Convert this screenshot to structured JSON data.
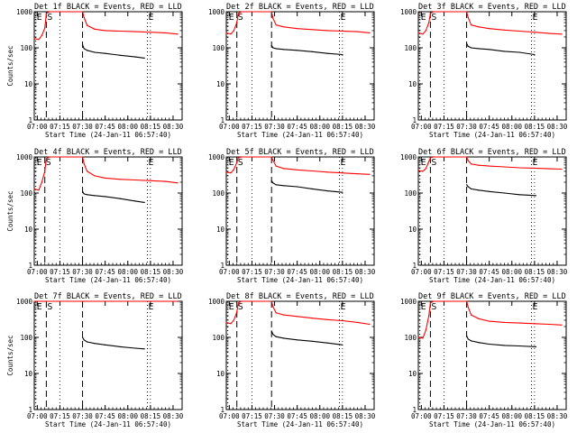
{
  "chart_data": [
    {
      "type": "line",
      "title": "Det 1f BLACK = Events, RED = LLD",
      "xlabel": "Start Time (24-Jan-11 06:57:40)",
      "ylabel": "Counts/sec",
      "x_ticks": [
        "07:00",
        "07:15",
        "07:30",
        "07:45",
        "08:00",
        "08:15",
        "08:30"
      ],
      "y_ticks": [
        "1",
        "10",
        "100",
        "1000"
      ],
      "ylim": [
        1,
        1000
      ],
      "scale": "log",
      "markers": [
        {
          "label": "E",
          "time": "06:59"
        },
        {
          "label": "S",
          "time": "07:06"
        },
        {
          "label": "",
          "time": "07:30"
        },
        {
          "label": "E",
          "time": "08:13"
        }
      ],
      "series": [
        {
          "name": "RED",
          "color": "#ff0000",
          "x": [
            "06:58",
            "07:01",
            "07:03",
            "07:05",
            "07:06",
            "07:08",
            "07:30",
            "07:31",
            "07:33",
            "07:38",
            "07:45",
            "07:55",
            "08:05",
            "08:15",
            "08:25",
            "08:33"
          ],
          "y": [
            180,
            170,
            220,
            350,
            900,
            1000,
            1000,
            700,
            420,
            330,
            300,
            290,
            280,
            270,
            260,
            240
          ]
        },
        {
          "name": "BLACK",
          "color": "#000000",
          "x": [
            "07:30",
            "07:31",
            "07:33",
            "07:38",
            "07:45",
            "07:55",
            "08:05",
            "08:11"
          ],
          "y": [
            120,
            95,
            85,
            75,
            70,
            62,
            56,
            52
          ]
        }
      ]
    },
    {
      "type": "line",
      "title": "Det 2f BLACK = Events, RED = LLD",
      "xlabel": "Start Time (24-Jan-11 06:57:40)",
      "ylabel": "",
      "x_ticks": [
        "07:00",
        "07:15",
        "07:30",
        "07:45",
        "08:00",
        "08:15",
        "08:30"
      ],
      "y_ticks": [
        "1",
        "10",
        "100",
        "1000"
      ],
      "ylim": [
        1,
        1000
      ],
      "scale": "log",
      "markers": [
        {
          "label": "E",
          "time": "06:59"
        },
        {
          "label": "S",
          "time": "07:05"
        },
        {
          "label": "",
          "time": "07:28"
        },
        {
          "label": "E",
          "time": "08:13"
        }
      ],
      "series": [
        {
          "name": "RED",
          "color": "#ff0000",
          "x": [
            "06:58",
            "07:01",
            "07:03",
            "07:05",
            "07:06",
            "07:08",
            "07:28",
            "07:29",
            "07:31",
            "07:36",
            "07:45",
            "07:55",
            "08:05",
            "08:15",
            "08:25",
            "08:33"
          ],
          "y": [
            260,
            240,
            300,
            500,
            900,
            1000,
            1000,
            650,
            430,
            380,
            340,
            320,
            300,
            290,
            280,
            260
          ]
        },
        {
          "name": "BLACK",
          "color": "#000000",
          "x": [
            "07:28",
            "07:29",
            "07:31",
            "07:36",
            "07:45",
            "07:55",
            "08:05",
            "08:15"
          ],
          "y": [
            115,
            100,
            95,
            90,
            85,
            78,
            70,
            65
          ]
        }
      ]
    },
    {
      "type": "line",
      "title": "Det 3f BLACK = Events, RED = LLD",
      "xlabel": "Start Time (24-Jan-11 06:57:40)",
      "ylabel": "",
      "x_ticks": [
        "07:00",
        "07:15",
        "07:30",
        "07:45",
        "08:00",
        "08:15",
        "08:30"
      ],
      "y_ticks": [
        "1",
        "10",
        "100",
        "1000"
      ],
      "ylim": [
        1,
        1000
      ],
      "scale": "log",
      "markers": [
        {
          "label": "E",
          "time": "06:59"
        },
        {
          "label": "S",
          "time": "07:06"
        },
        {
          "label": "",
          "time": "07:30"
        },
        {
          "label": "E",
          "time": "08:13"
        }
      ],
      "series": [
        {
          "name": "RED",
          "color": "#ff0000",
          "x": [
            "06:58",
            "07:01",
            "07:03",
            "07:05",
            "07:06",
            "07:08",
            "07:30",
            "07:31",
            "07:33",
            "07:38",
            "07:45",
            "07:55",
            "08:05",
            "08:15",
            "08:25",
            "08:33"
          ],
          "y": [
            260,
            240,
            300,
            500,
            900,
            1000,
            1000,
            700,
            430,
            380,
            340,
            310,
            290,
            270,
            250,
            240
          ]
        },
        {
          "name": "BLACK",
          "color": "#000000",
          "x": [
            "07:30",
            "07:31",
            "07:33",
            "07:38",
            "07:45",
            "07:55",
            "08:05",
            "08:15"
          ],
          "y": [
            130,
            110,
            100,
            95,
            90,
            80,
            75,
            65
          ]
        }
      ]
    },
    {
      "type": "line",
      "title": "Det 4f BLACK = Events, RED = LLD",
      "xlabel": "Start Time (24-Jan-11 06:57:40)",
      "ylabel": "Counts/sec",
      "x_ticks": [
        "07:00",
        "07:15",
        "07:30",
        "07:45",
        "08:00",
        "08:15",
        "08:30"
      ],
      "y_ticks": [
        "1",
        "10",
        "100",
        "1000"
      ],
      "ylim": [
        1,
        1000
      ],
      "scale": "log",
      "markers": [
        {
          "label": "E",
          "time": "06:59"
        },
        {
          "label": "S",
          "time": "07:05"
        },
        {
          "label": "",
          "time": "07:30"
        },
        {
          "label": "E",
          "time": "08:13"
        }
      ],
      "series": [
        {
          "name": "RED",
          "color": "#ff0000",
          "x": [
            "06:58",
            "07:01",
            "07:03",
            "07:05",
            "07:06",
            "07:08",
            "07:30",
            "07:31",
            "07:33",
            "07:38",
            "07:45",
            "07:55",
            "08:05",
            "08:15",
            "08:25",
            "08:33"
          ],
          "y": [
            130,
            120,
            200,
            400,
            900,
            1000,
            1000,
            650,
            400,
            300,
            260,
            240,
            230,
            220,
            210,
            190
          ]
        },
        {
          "name": "BLACK",
          "color": "#000000",
          "x": [
            "07:30",
            "07:31",
            "07:33",
            "07:38",
            "07:45",
            "07:55",
            "08:05",
            "08:11"
          ],
          "y": [
            110,
            95,
            90,
            85,
            80,
            70,
            60,
            55
          ]
        }
      ]
    },
    {
      "type": "line",
      "title": "Det 5f BLACK = Events, RED = LLD",
      "xlabel": "Start Time (24-Jan-11 06:57:40)",
      "ylabel": "",
      "x_ticks": [
        "07:00",
        "07:15",
        "07:30",
        "07:45",
        "08:00",
        "08:15",
        "08:30"
      ],
      "y_ticks": [
        "1",
        "10",
        "100",
        "1000"
      ],
      "ylim": [
        1,
        1000
      ],
      "scale": "log",
      "markers": [
        {
          "label": "E",
          "time": "06:59"
        },
        {
          "label": "S",
          "time": "07:05"
        },
        {
          "label": "",
          "time": "07:28"
        },
        {
          "label": "E",
          "time": "08:13"
        }
      ],
      "series": [
        {
          "name": "RED",
          "color": "#ff0000",
          "x": [
            "06:58",
            "07:01",
            "07:03",
            "07:05",
            "07:06",
            "07:08",
            "07:28",
            "07:29",
            "07:31",
            "07:36",
            "07:45",
            "07:55",
            "08:05",
            "08:15",
            "08:25",
            "08:33"
          ],
          "y": [
            380,
            360,
            450,
            700,
            950,
            1000,
            1000,
            800,
            560,
            480,
            440,
            410,
            380,
            360,
            340,
            330
          ]
        },
        {
          "name": "BLACK",
          "color": "#000000",
          "x": [
            "07:28",
            "07:29",
            "07:31",
            "07:36",
            "07:45",
            "07:55",
            "08:05",
            "08:15"
          ],
          "y": [
            220,
            190,
            170,
            160,
            150,
            130,
            115,
            105
          ]
        }
      ]
    },
    {
      "type": "line",
      "title": "Det 6f BLACK = Events, RED = LLD",
      "xlabel": "Start Time (24-Jan-11 06:57:40)",
      "ylabel": "",
      "x_ticks": [
        "07:00",
        "07:15",
        "07:30",
        "07:45",
        "08:00",
        "08:15",
        "08:30"
      ],
      "y_ticks": [
        "1",
        "10",
        "100",
        "1000"
      ],
      "ylim": [
        1,
        1000
      ],
      "scale": "log",
      "markers": [
        {
          "label": "E",
          "time": "06:59"
        },
        {
          "label": "S",
          "time": "07:06"
        },
        {
          "label": "",
          "time": "07:30"
        },
        {
          "label": "E",
          "time": "08:13"
        }
      ],
      "series": [
        {
          "name": "RED",
          "color": "#ff0000",
          "x": [
            "06:58",
            "07:01",
            "07:03",
            "07:05",
            "07:06",
            "07:08",
            "07:30",
            "07:31",
            "07:33",
            "07:38",
            "07:45",
            "07:55",
            "08:05",
            "08:15",
            "08:25",
            "08:33"
          ],
          "y": [
            420,
            400,
            480,
            750,
            950,
            1000,
            1000,
            800,
            640,
            590,
            560,
            530,
            500,
            490,
            470,
            460
          ]
        },
        {
          "name": "BLACK",
          "color": "#000000",
          "x": [
            "07:30",
            "07:31",
            "07:33",
            "07:38",
            "07:45",
            "07:55",
            "08:05",
            "08:16"
          ],
          "y": [
            170,
            150,
            130,
            120,
            110,
            100,
            90,
            85
          ]
        }
      ]
    },
    {
      "type": "line",
      "title": "Det 7f BLACK = Events, RED = LLD",
      "xlabel": "Start Time (24-Jan-11 06:57:40)",
      "ylabel": "Counts/sec",
      "x_ticks": [
        "07:00",
        "07:15",
        "07:30",
        "07:45",
        "08:00",
        "08:15",
        "08:30"
      ],
      "y_ticks": [
        "1",
        "10",
        "100",
        "1000"
      ],
      "ylim": [
        1,
        1000
      ],
      "scale": "log",
      "markers": [
        {
          "label": "E",
          "time": "06:59"
        },
        {
          "label": "S",
          "time": "07:06"
        },
        {
          "label": "",
          "time": "07:30"
        },
        {
          "label": "E",
          "time": "08:13"
        }
      ],
      "series": [
        {
          "name": "RED",
          "color": "#ff0000",
          "x": [
            "06:58",
            "07:05",
            "07:06",
            "07:30",
            "07:31",
            "07:45",
            "08:00",
            "08:15",
            "08:33"
          ],
          "y": [
            1000,
            1000,
            1000,
            1000,
            1000,
            1000,
            1000,
            1000,
            1000
          ]
        },
        {
          "name": "BLACK",
          "color": "#000000",
          "x": [
            "07:30",
            "07:31",
            "07:33",
            "07:38",
            "07:45",
            "07:55",
            "08:05",
            "08:11"
          ],
          "y": [
            100,
            85,
            75,
            68,
            62,
            55,
            50,
            48
          ]
        }
      ]
    },
    {
      "type": "line",
      "title": "Det 8f BLACK = Events, RED = LLD",
      "xlabel": "Start Time (24-Jan-11 06:57:40)",
      "ylabel": "",
      "x_ticks": [
        "07:00",
        "07:15",
        "07:30",
        "07:45",
        "08:00",
        "08:15",
        "08:30"
      ],
      "y_ticks": [
        "1",
        "10",
        "100",
        "1000"
      ],
      "ylim": [
        1,
        1000
      ],
      "scale": "log",
      "markers": [
        {
          "label": "E",
          "time": "06:59"
        },
        {
          "label": "S",
          "time": "07:05"
        },
        {
          "label": "",
          "time": "07:28"
        },
        {
          "label": "E",
          "time": "08:13"
        }
      ],
      "series": [
        {
          "name": "RED",
          "color": "#ff0000",
          "x": [
            "06:58",
            "07:01",
            "07:03",
            "07:05",
            "07:06",
            "07:08",
            "07:28",
            "07:29",
            "07:31",
            "07:36",
            "07:45",
            "07:55",
            "08:05",
            "08:15",
            "08:25",
            "08:33"
          ],
          "y": [
            260,
            240,
            300,
            500,
            900,
            1000,
            1000,
            700,
            480,
            420,
            380,
            340,
            310,
            290,
            260,
            230
          ]
        },
        {
          "name": "BLACK",
          "color": "#000000",
          "x": [
            "07:28",
            "07:29",
            "07:31",
            "07:36",
            "07:45",
            "07:55",
            "08:05",
            "08:15"
          ],
          "y": [
            150,
            120,
            105,
            95,
            85,
            78,
            70,
            62
          ]
        }
      ]
    },
    {
      "type": "line",
      "title": "Det 9f BLACK = Events, RED = LLD",
      "xlabel": "Start Time (24-Jan-11 06:57:40)",
      "ylabel": "",
      "x_ticks": [
        "07:00",
        "07:15",
        "07:30",
        "07:45",
        "08:00",
        "08:15",
        "08:30"
      ],
      "y_ticks": [
        "1",
        "10",
        "100",
        "1000"
      ],
      "ylim": [
        1,
        1000
      ],
      "scale": "log",
      "markers": [
        {
          "label": "E",
          "time": "06:59"
        },
        {
          "label": "S",
          "time": "07:06"
        },
        {
          "label": "",
          "time": "07:30"
        },
        {
          "label": "E",
          "time": "08:13"
        }
      ],
      "series": [
        {
          "name": "RED",
          "color": "#ff0000",
          "x": [
            "06:58",
            "07:01",
            "07:03",
            "07:05",
            "07:06",
            "07:08",
            "07:30",
            "07:31",
            "07:33",
            "07:38",
            "07:45",
            "07:55",
            "08:05",
            "08:15",
            "08:25",
            "08:33"
          ],
          "y": [
            100,
            95,
            160,
            400,
            900,
            1000,
            1000,
            700,
            420,
            330,
            280,
            260,
            250,
            240,
            230,
            220
          ]
        },
        {
          "name": "BLACK",
          "color": "#000000",
          "x": [
            "07:30",
            "07:31",
            "07:33",
            "07:38",
            "07:45",
            "07:55",
            "08:05",
            "08:16"
          ],
          "y": [
            110,
            90,
            80,
            72,
            65,
            60,
            58,
            55
          ]
        }
      ]
    }
  ]
}
